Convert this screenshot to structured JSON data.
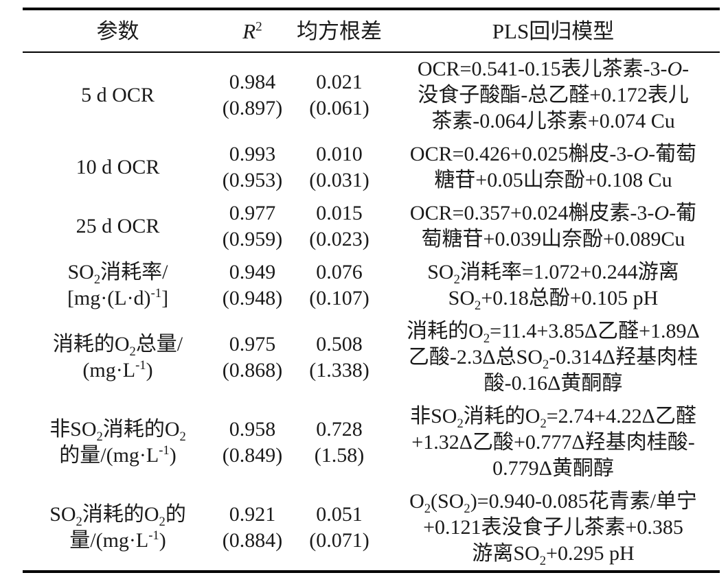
{
  "table": {
    "columns": [
      "param",
      "r2",
      "rmse",
      "model"
    ],
    "headers": [
      [
        [
          [
            "",
            "参数"
          ]
        ]
      ],
      [
        [
          [
            "i",
            "R"
          ],
          [
            "sup",
            "2"
          ]
        ]
      ],
      [
        [
          [
            "",
            "均方根差"
          ]
        ]
      ],
      [
        [
          [
            "",
            "PLS回归模型"
          ]
        ]
      ]
    ],
    "rows": [
      {
        "param": [
          "5 d OCR"
        ],
        "r2": [
          "0.984",
          "(0.897)"
        ],
        "rmse": [
          "0.021",
          "(0.061)"
        ],
        "model": [
          [
            [
              "",
              "OCR=0.541-0.15表儿茶素-3-"
            ],
            [
              "i",
              "O"
            ],
            [
              "",
              "-"
            ]
          ],
          "没食子酸酯-总乙醛+0.172表儿",
          "茶素-0.064儿茶素+0.074 Cu"
        ]
      },
      {
        "param": [
          "10 d OCR"
        ],
        "r2": [
          "0.993",
          "(0.953)"
        ],
        "rmse": [
          "0.010",
          "(0.031)"
        ],
        "model": [
          [
            [
              "",
              "OCR=0.426+0.025槲皮-3-"
            ],
            [
              "i",
              "O"
            ],
            [
              "",
              "-葡萄"
            ]
          ],
          "糖苷+0.05山奈酚+0.108 Cu"
        ]
      },
      {
        "param": [
          "25 d OCR"
        ],
        "r2": [
          "0.977",
          "(0.959)"
        ],
        "rmse": [
          "0.015",
          "(0.023)"
        ],
        "model": [
          [
            [
              "",
              "OCR=0.357+0.024槲皮素-3-"
            ],
            [
              "i",
              "O"
            ],
            [
              "",
              "-葡"
            ]
          ],
          "萄糖苷+0.039山奈酚+0.089Cu"
        ]
      },
      {
        "param": [
          [
            [
              "",
              "SO"
            ],
            [
              "sub",
              "2"
            ],
            [
              "",
              "消耗率/"
            ]
          ],
          [
            [
              "",
              "[mg·(L·d)"
            ],
            [
              "sup",
              "-1"
            ],
            [
              "",
              "]"
            ]
          ]
        ],
        "r2": [
          "0.949",
          "(0.948)"
        ],
        "rmse": [
          "0.076",
          "(0.107)"
        ],
        "model": [
          [
            [
              "",
              "SO"
            ],
            [
              "sub",
              "2"
            ],
            [
              "",
              "消耗率=1.072+0.244游离"
            ]
          ],
          [
            [
              "",
              "SO"
            ],
            [
              "sub",
              "2"
            ],
            [
              "",
              "+0.18总酚+0.105 pH"
            ]
          ]
        ]
      },
      {
        "param": [
          [
            [
              "",
              "消耗的O"
            ],
            [
              "sub",
              "2"
            ],
            [
              "",
              "总量/"
            ]
          ],
          [
            [
              "",
              "(mg·L"
            ],
            [
              "sup",
              "-1"
            ],
            [
              "",
              ")"
            ]
          ]
        ],
        "r2": [
          "0.975",
          "(0.868)"
        ],
        "rmse": [
          "0.508",
          "(1.338)"
        ],
        "model": [
          [
            [
              "",
              "消耗的O"
            ],
            [
              "sub",
              "2"
            ],
            [
              "",
              "=11.4+3.85Δ乙醛+1.89Δ"
            ]
          ],
          [
            [
              "",
              "乙酸-2.3Δ总SO"
            ],
            [
              "sub",
              "2"
            ],
            [
              "",
              "-0.314Δ羟基肉桂"
            ]
          ],
          "酸-0.16Δ黄酮醇"
        ]
      },
      {
        "param": [
          [
            [
              "",
              "非SO"
            ],
            [
              "sub",
              "2"
            ],
            [
              "",
              "消耗的O"
            ],
            [
              "sub",
              "2"
            ]
          ],
          [
            [
              "",
              "的量/(mg·L"
            ],
            [
              "sup",
              "-1"
            ],
            [
              "",
              ")"
            ]
          ]
        ],
        "r2": [
          "0.958",
          "(0.849)"
        ],
        "rmse": [
          "0.728",
          "(1.58)"
        ],
        "model": [
          [
            [
              "",
              "非SO"
            ],
            [
              "sub",
              "2"
            ],
            [
              "",
              "消耗的O"
            ],
            [
              "sub",
              "2"
            ],
            [
              "",
              "=2.74+4.22Δ乙醛"
            ]
          ],
          "+1.32Δ乙酸+0.777Δ羟基肉桂酸-",
          "0.779Δ黄酮醇"
        ]
      },
      {
        "param": [
          [
            [
              "",
              "SO"
            ],
            [
              "sub",
              "2"
            ],
            [
              "",
              "消耗的O"
            ],
            [
              "sub",
              "2"
            ],
            [
              "",
              "的"
            ]
          ],
          [
            [
              "",
              "量/(mg·L"
            ],
            [
              "sup",
              "-1"
            ],
            [
              "",
              ")"
            ]
          ]
        ],
        "r2": [
          "0.921",
          "(0.884)"
        ],
        "rmse": [
          "0.051",
          "(0.071)"
        ],
        "model": [
          [
            [
              "",
              "O"
            ],
            [
              "sub",
              "2"
            ],
            [
              "",
              "(SO"
            ],
            [
              "sub",
              "2"
            ],
            [
              "",
              ")=0.940-0.085花青素/单宁"
            ]
          ],
          "+0.121表没食子儿茶素+0.385",
          [
            [
              "",
              "游离SO"
            ],
            [
              "sub",
              "2"
            ],
            [
              "",
              "+0.295 pH"
            ]
          ]
        ]
      }
    ]
  }
}
